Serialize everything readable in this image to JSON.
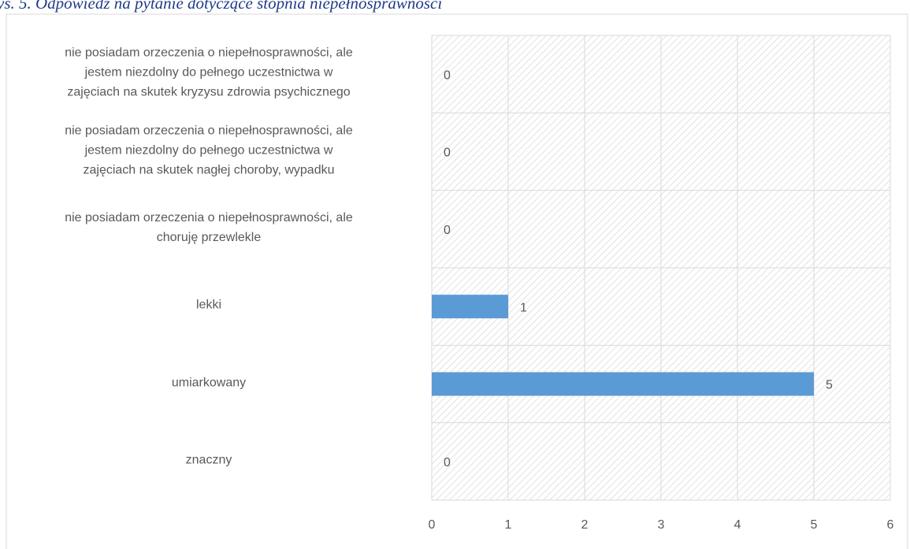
{
  "chart_data": {
    "type": "barh",
    "title": "ys. 5. Odpowiedź na pytanie dotyczące stopnia niepełnosprawności",
    "categories": [
      "nie posiadam orzeczenia o niepełnosprawności, ale\njestem niezdolny do pełnego uczestnictwa w\nzajęciach na skutek kryzysu zdrowia psychicznego",
      "nie posiadam orzeczenia o niepełnosprawności, ale\njestem niezdolny do pełnego uczestnictwa w\nzajęciach na skutek nagłej choroby, wypadku",
      "nie posiadam orzeczenia o niepełnosprawności, ale\nchoruję przewlekle",
      "lekki",
      "umiarkowany",
      "znaczny"
    ],
    "values": [
      0,
      0,
      0,
      1,
      5,
      0
    ],
    "color": "#5b9bd5",
    "xlim": [
      0,
      6
    ],
    "xticks": [
      0,
      1,
      2,
      3,
      4,
      5,
      6
    ],
    "grid": true
  }
}
